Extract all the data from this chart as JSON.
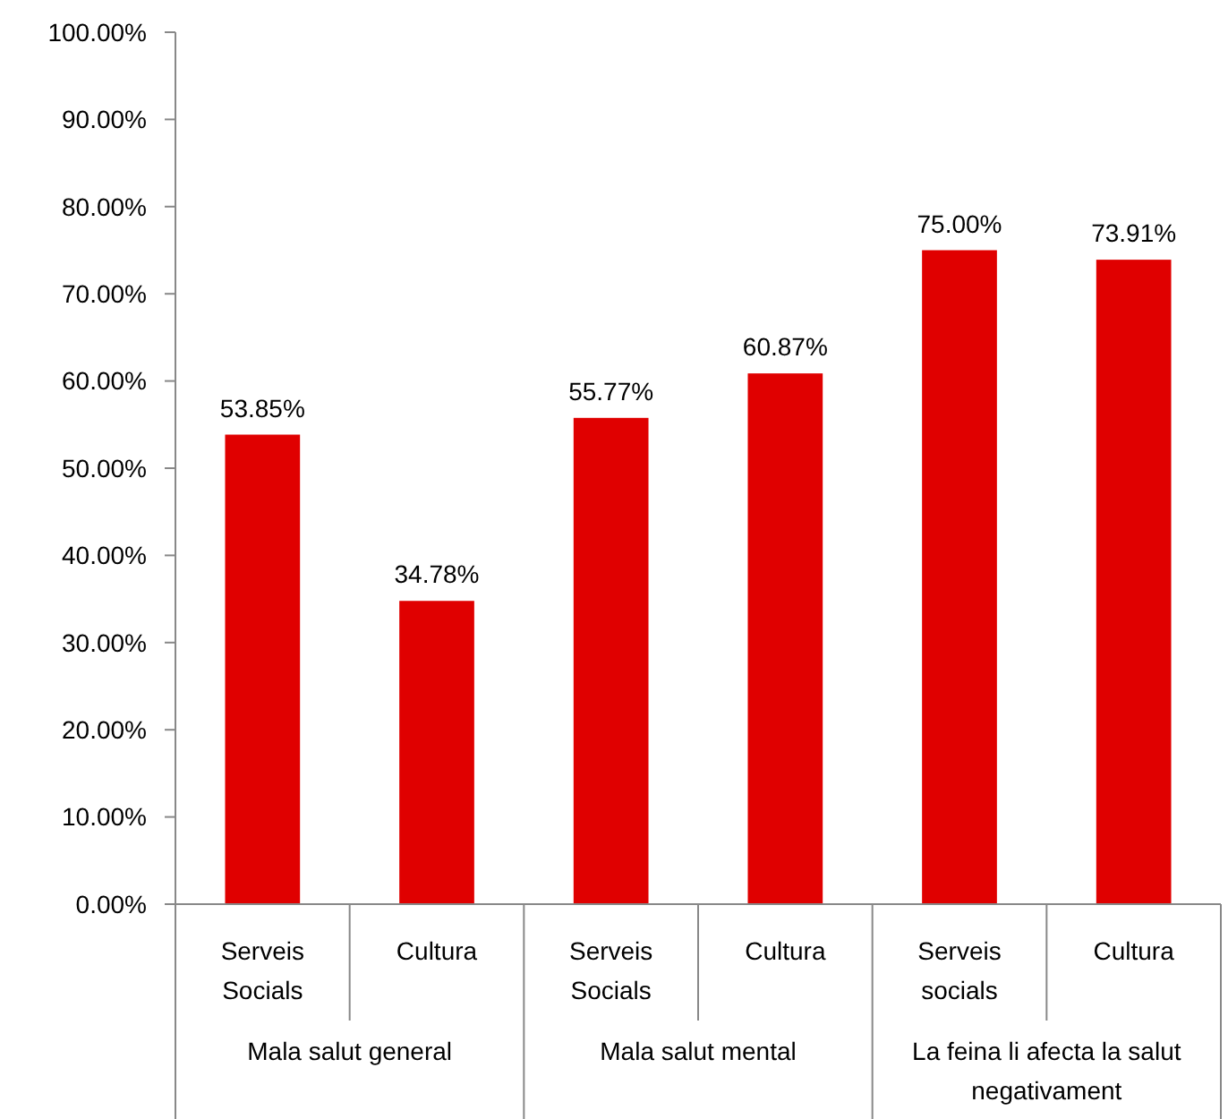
{
  "chart_data": {
    "type": "bar",
    "categories": [
      "Serveis Socials",
      "Cultura",
      "Serveis Socials",
      "Cultura",
      "Serveis socials",
      "Cultura"
    ],
    "values": [
      53.85,
      34.78,
      55.77,
      60.87,
      75.0,
      73.91
    ],
    "value_labels": [
      "53.85%",
      "34.78%",
      "55.77%",
      "60.87%",
      "75.00%",
      "73.91%"
    ],
    "color": "#e00000",
    "ylim": [
      0,
      100
    ],
    "yticks": [
      {
        "value": 0,
        "label": "0.00%"
      },
      {
        "value": 10,
        "label": "10.00%"
      },
      {
        "value": 20,
        "label": "20.00%"
      },
      {
        "value": 30,
        "label": "30.00%"
      },
      {
        "value": 40,
        "label": "40.00%"
      },
      {
        "value": 50,
        "label": "50.00%"
      },
      {
        "value": 60,
        "label": "60.00%"
      },
      {
        "value": 70,
        "label": "70.00%"
      },
      {
        "value": 80,
        "label": "80.00%"
      },
      {
        "value": 90,
        "label": "90.00%"
      },
      {
        "value": 100,
        "label": "100.00%"
      }
    ],
    "annotations": [
      "Mala salut general",
      "Mala salut mental",
      "La feina li afecta la salut negativament"
    ],
    "grid": false
  }
}
